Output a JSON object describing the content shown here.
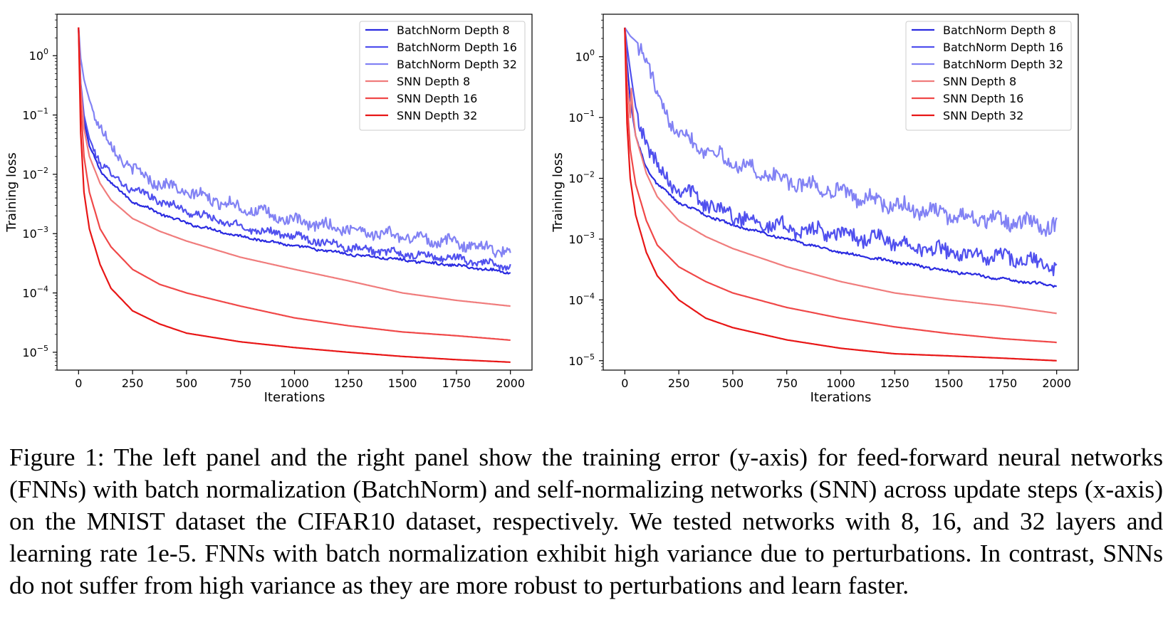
{
  "caption": "Figure 1: The left panel and the right panel show the training error (y-axis) for feed-forward neural networks (FNNs) with batch normalization (BatchNorm) and self-normalizing networks (SNN) across update steps (x-axis) on the MNIST dataset the CIFAR10 dataset, respectively. We tested networks with 8, 16, and 32 layers and learning rate 1e-5. FNNs with batch normalization exhibit high variance due to perturbations. In contrast, SNNs do not suffer from high variance as they are more robust to perturbations and learn faster.",
  "chart_data": [
    {
      "type": "line",
      "panel": "left",
      "xlabel": "Iterations",
      "ylabel": "Training loss",
      "yscale": "log",
      "xlim": [
        -100,
        2100
      ],
      "ylim": [
        5e-06,
        5
      ],
      "xticks": [
        0,
        250,
        500,
        750,
        1000,
        1250,
        1500,
        1750,
        2000
      ],
      "yticks": [
        {
          "value": 1,
          "exp": "0"
        },
        {
          "value": 0.1,
          "exp": "−1"
        },
        {
          "value": 0.01,
          "exp": "−2"
        },
        {
          "value": 0.001,
          "exp": "−3"
        },
        {
          "value": 0.0001,
          "exp": "−4"
        },
        {
          "value": 1e-05,
          "exp": "−5"
        }
      ],
      "grid": false,
      "legend_position": "top-right",
      "series": [
        {
          "name": "BatchNorm Depth 8",
          "color": "#2a2ae0",
          "noise": 0.02,
          "points": [
            [
              0,
              3
            ],
            [
              10,
              0.3
            ],
            [
              25,
              0.08
            ],
            [
              50,
              0.03
            ],
            [
              100,
              0.012
            ],
            [
              150,
              0.007
            ],
            [
              250,
              0.0035
            ],
            [
              375,
              0.0022
            ],
            [
              500,
              0.0015
            ],
            [
              750,
              0.0009
            ],
            [
              1000,
              0.00062
            ],
            [
              1250,
              0.00045
            ],
            [
              1500,
              0.00036
            ],
            [
              1750,
              0.00029
            ],
            [
              2000,
              0.00022
            ]
          ]
        },
        {
          "name": "BatchNorm Depth 16",
          "color": "#5050ee",
          "noise": 0.06,
          "points": [
            [
              0,
              3
            ],
            [
              10,
              0.35
            ],
            [
              25,
              0.1
            ],
            [
              50,
              0.04
            ],
            [
              100,
              0.016
            ],
            [
              150,
              0.01
            ],
            [
              250,
              0.0055
            ],
            [
              500,
              0.0024
            ],
            [
              750,
              0.0013
            ],
            [
              1000,
              0.0009
            ],
            [
              1250,
              0.0006
            ],
            [
              1500,
              0.00045
            ],
            [
              1750,
              0.00038
            ],
            [
              2000,
              0.00027
            ]
          ]
        },
        {
          "name": "BatchNorm Depth 32",
          "color": "#8282f4",
          "noise": 0.09,
          "points": [
            [
              0,
              3
            ],
            [
              10,
              0.9
            ],
            [
              25,
              0.4
            ],
            [
              50,
              0.18
            ],
            [
              100,
              0.06
            ],
            [
              150,
              0.03
            ],
            [
              250,
              0.012
            ],
            [
              375,
              0.007
            ],
            [
              500,
              0.005
            ],
            [
              750,
              0.0028
            ],
            [
              1000,
              0.0016
            ],
            [
              1250,
              0.0012
            ],
            [
              1500,
              0.0009
            ],
            [
              1750,
              0.0007
            ],
            [
              2000,
              0.0005
            ]
          ]
        },
        {
          "name": "SNN Depth 8",
          "color": "#f07c7c",
          "noise": 0,
          "points": [
            [
              0,
              3
            ],
            [
              10,
              0.3
            ],
            [
              25,
              0.06
            ],
            [
              50,
              0.02
            ],
            [
              100,
              0.007
            ],
            [
              150,
              0.0037
            ],
            [
              250,
              0.0018
            ],
            [
              375,
              0.0011
            ],
            [
              500,
              0.00075
            ],
            [
              750,
              0.0004
            ],
            [
              1000,
              0.00025
            ],
            [
              1250,
              0.00016
            ],
            [
              1500,
              0.0001
            ],
            [
              1750,
              7.5e-05
            ],
            [
              2000,
              6e-05
            ]
          ]
        },
        {
          "name": "SNN Depth 16",
          "color": "#f04848",
          "noise": 0,
          "points": [
            [
              0,
              3
            ],
            [
              10,
              0.15
            ],
            [
              25,
              0.02
            ],
            [
              50,
              0.005
            ],
            [
              100,
              0.0012
            ],
            [
              150,
              0.0006
            ],
            [
              250,
              0.00025
            ],
            [
              375,
              0.00014
            ],
            [
              500,
              0.0001
            ],
            [
              750,
              6e-05
            ],
            [
              1000,
              3.8e-05
            ],
            [
              1250,
              2.8e-05
            ],
            [
              1500,
              2.2e-05
            ],
            [
              1750,
              1.9e-05
            ],
            [
              2000,
              1.6e-05
            ]
          ]
        },
        {
          "name": "SNN Depth 32",
          "color": "#e81616",
          "noise": 0,
          "points": [
            [
              0,
              3
            ],
            [
              10,
              0.05
            ],
            [
              25,
              0.005
            ],
            [
              50,
              0.0012
            ],
            [
              100,
              0.0003
            ],
            [
              150,
              0.00012
            ],
            [
              250,
              5e-05
            ],
            [
              375,
              3e-05
            ],
            [
              500,
              2.1e-05
            ],
            [
              750,
              1.5e-05
            ],
            [
              1000,
              1.2e-05
            ],
            [
              1250,
              1e-05
            ],
            [
              1500,
              8.5e-06
            ],
            [
              1750,
              7.5e-06
            ],
            [
              2000,
              6.8e-06
            ]
          ]
        }
      ]
    },
    {
      "type": "line",
      "panel": "right",
      "xlabel": "Iterations",
      "ylabel": "Training loss",
      "yscale": "log",
      "xlim": [
        -100,
        2100
      ],
      "ylim": [
        7e-06,
        5
      ],
      "xticks": [
        0,
        250,
        500,
        750,
        1000,
        1250,
        1500,
        1750,
        2000
      ],
      "yticks": [
        {
          "value": 1,
          "exp": "0"
        },
        {
          "value": 0.1,
          "exp": "−1"
        },
        {
          "value": 0.01,
          "exp": "−2"
        },
        {
          "value": 0.001,
          "exp": "−3"
        },
        {
          "value": 0.0001,
          "exp": "−4"
        },
        {
          "value": 1e-05,
          "exp": "−5"
        }
      ],
      "grid": false,
      "legend_position": "top-right",
      "series": [
        {
          "name": "BatchNorm Depth 8",
          "color": "#2a2ae0",
          "noise": 0.02,
          "points": [
            [
              0,
              3
            ],
            [
              10,
              0.8
            ],
            [
              25,
              0.2
            ],
            [
              50,
              0.05
            ],
            [
              100,
              0.015
            ],
            [
              150,
              0.008
            ],
            [
              250,
              0.004
            ],
            [
              375,
              0.0025
            ],
            [
              500,
              0.0017
            ],
            [
              750,
              0.001
            ],
            [
              1000,
              0.0006
            ],
            [
              1250,
              0.00042
            ],
            [
              1500,
              0.0003
            ],
            [
              1750,
              0.00022
            ],
            [
              2000,
              0.00017
            ]
          ]
        },
        {
          "name": "BatchNorm Depth 16",
          "color": "#5050ee",
          "noise": 0.12,
          "points": [
            [
              0,
              3
            ],
            [
              10,
              1.5
            ],
            [
              25,
              0.6
            ],
            [
              50,
              0.15
            ],
            [
              100,
              0.04
            ],
            [
              150,
              0.015
            ],
            [
              250,
              0.007
            ],
            [
              375,
              0.004
            ],
            [
              500,
              0.0025
            ],
            [
              750,
              0.0015
            ],
            [
              1000,
              0.0012
            ],
            [
              1250,
              0.0009
            ],
            [
              1500,
              0.0006
            ],
            [
              1750,
              0.0005
            ],
            [
              2000,
              0.00035
            ]
          ]
        },
        {
          "name": "BatchNorm Depth 32",
          "color": "#8282f4",
          "noise": 0.12,
          "points": [
            [
              0,
              3
            ],
            [
              25,
              2.2
            ],
            [
              75,
              1.5
            ],
            [
              120,
              0.5
            ],
            [
              150,
              0.2
            ],
            [
              250,
              0.06
            ],
            [
              375,
              0.03
            ],
            [
              500,
              0.018
            ],
            [
              750,
              0.009
            ],
            [
              1000,
              0.006
            ],
            [
              1250,
              0.0035
            ],
            [
              1500,
              0.0025
            ],
            [
              1750,
              0.002
            ],
            [
              2000,
              0.0016
            ]
          ]
        },
        {
          "name": "SNN Depth 8",
          "color": "#f07c7c",
          "noise": 0,
          "points": [
            [
              0,
              3
            ],
            [
              10,
              0.4
            ],
            [
              25,
              0.1
            ],
            [
              30,
              0.3
            ],
            [
              38,
              0.12
            ],
            [
              50,
              0.05
            ],
            [
              100,
              0.012
            ],
            [
              150,
              0.005
            ],
            [
              250,
              0.002
            ],
            [
              375,
              0.0011
            ],
            [
              500,
              0.0007
            ],
            [
              750,
              0.00035
            ],
            [
              1000,
              0.0002
            ],
            [
              1250,
              0.00013
            ],
            [
              1500,
              0.0001
            ],
            [
              1750,
              8e-05
            ],
            [
              2000,
              6e-05
            ]
          ]
        },
        {
          "name": "SNN Depth 16",
          "color": "#f04848",
          "noise": 0,
          "points": [
            [
              0,
              3
            ],
            [
              10,
              0.2
            ],
            [
              25,
              0.03
            ],
            [
              50,
              0.008
            ],
            [
              100,
              0.002
            ],
            [
              150,
              0.0008
            ],
            [
              250,
              0.00035
            ],
            [
              375,
              0.0002
            ],
            [
              500,
              0.00013
            ],
            [
              750,
              7.5e-05
            ],
            [
              1000,
              5e-05
            ],
            [
              1250,
              3.6e-05
            ],
            [
              1500,
              2.8e-05
            ],
            [
              1750,
              2.3e-05
            ],
            [
              2000,
              2e-05
            ]
          ]
        },
        {
          "name": "SNN Depth 32",
          "color": "#e81616",
          "noise": 0,
          "points": [
            [
              0,
              3
            ],
            [
              10,
              0.08
            ],
            [
              25,
              0.01
            ],
            [
              50,
              0.0025
            ],
            [
              100,
              0.0006
            ],
            [
              150,
              0.00025
            ],
            [
              250,
              0.0001
            ],
            [
              375,
              5e-05
            ],
            [
              500,
              3.5e-05
            ],
            [
              750,
              2.2e-05
            ],
            [
              1000,
              1.6e-05
            ],
            [
              1250,
              1.3e-05
            ],
            [
              1500,
              1.2e-05
            ],
            [
              1750,
              1.1e-05
            ],
            [
              2000,
              1e-05
            ]
          ]
        }
      ]
    }
  ]
}
